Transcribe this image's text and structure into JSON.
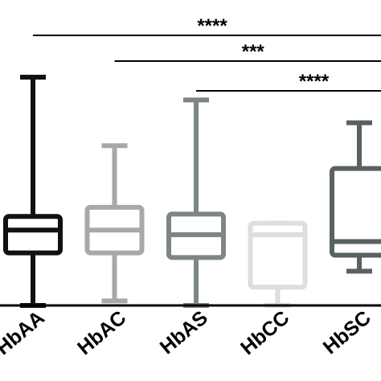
{
  "chart_data": {
    "type": "box",
    "title": "",
    "xlabel": "",
    "ylabel": "",
    "ylim": [
      0,
      100
    ],
    "categories": [
      "HbAA",
      "HbAC",
      "HbAS",
      "HbCC",
      "HbSC"
    ],
    "boxes": [
      {
        "category": "HbAA",
        "min": 0,
        "q1": 23,
        "median": 33,
        "q3": 39,
        "max": 100,
        "color": "#111111"
      },
      {
        "category": "HbAC",
        "min": 2,
        "q1": 23,
        "median": 33,
        "q3": 43,
        "max": 70,
        "color": "#a6a9ac"
      },
      {
        "category": "HbAS",
        "min": 0,
        "q1": 21,
        "median": 31,
        "q3": 40,
        "max": 90,
        "color": "#7d8587"
      },
      {
        "category": "HbCC",
        "min": 0,
        "q1": 8,
        "median": 31,
        "q3": 36,
        "max": 36,
        "color": "#dedede"
      },
      {
        "category": "HbSC",
        "min": 15,
        "q1": 22,
        "median": 28,
        "q3": 60,
        "max": 80,
        "color": "#5a6163"
      }
    ],
    "significance": [
      {
        "from": "HbAA",
        "to": "HbSC",
        "label": "****"
      },
      {
        "from": "HbAC",
        "to": "HbSC",
        "label": "***"
      },
      {
        "from": "HbAS",
        "to": "HbSC",
        "label": "****"
      }
    ],
    "grid": false
  }
}
